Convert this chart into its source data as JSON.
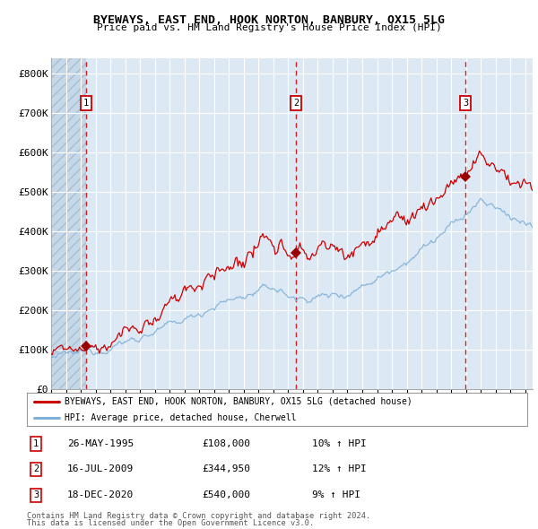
{
  "title": "BYEWAYS, EAST END, HOOK NORTON, BANBURY, OX15 5LG",
  "subtitle": "Price paid vs. HM Land Registry's House Price Index (HPI)",
  "legend_line1": "BYEWAYS, EAST END, HOOK NORTON, BANBURY, OX15 5LG (detached house)",
  "legend_line2": "HPI: Average price, detached house, Cherwell",
  "footnote1": "Contains HM Land Registry data © Crown copyright and database right 2024.",
  "footnote2": "This data is licensed under the Open Government Licence v3.0.",
  "transactions": [
    {
      "num": 1,
      "date": "26-MAY-1995",
      "price": 108000,
      "pct": "10%",
      "year": 1995.38
    },
    {
      "num": 2,
      "date": "16-JUL-2009",
      "price": 344950,
      "pct": "12%",
      "year": 2009.54
    },
    {
      "num": 3,
      "date": "18-DEC-2020",
      "price": 540000,
      "pct": "9%",
      "year": 2020.96
    }
  ],
  "hatch_region_end": 1995.38,
  "xmin": 1993.0,
  "xmax": 2025.5,
  "ymin": 0,
  "ymax": 840000,
  "yticks": [
    0,
    100000,
    200000,
    300000,
    400000,
    500000,
    600000,
    700000,
    800000
  ],
  "ytick_labels": [
    "£0",
    "£100K",
    "£200K",
    "£300K",
    "£400K",
    "£500K",
    "£600K",
    "£700K",
    "£800K"
  ],
  "bg_color": "#dce9f5",
  "grid_color": "#ffffff",
  "red_line_color": "#cc0000",
  "blue_line_color": "#7fb0d8",
  "marker_color": "#990000",
  "dashed_line_color": "#cc0000",
  "label_box_color": "#cc0000"
}
